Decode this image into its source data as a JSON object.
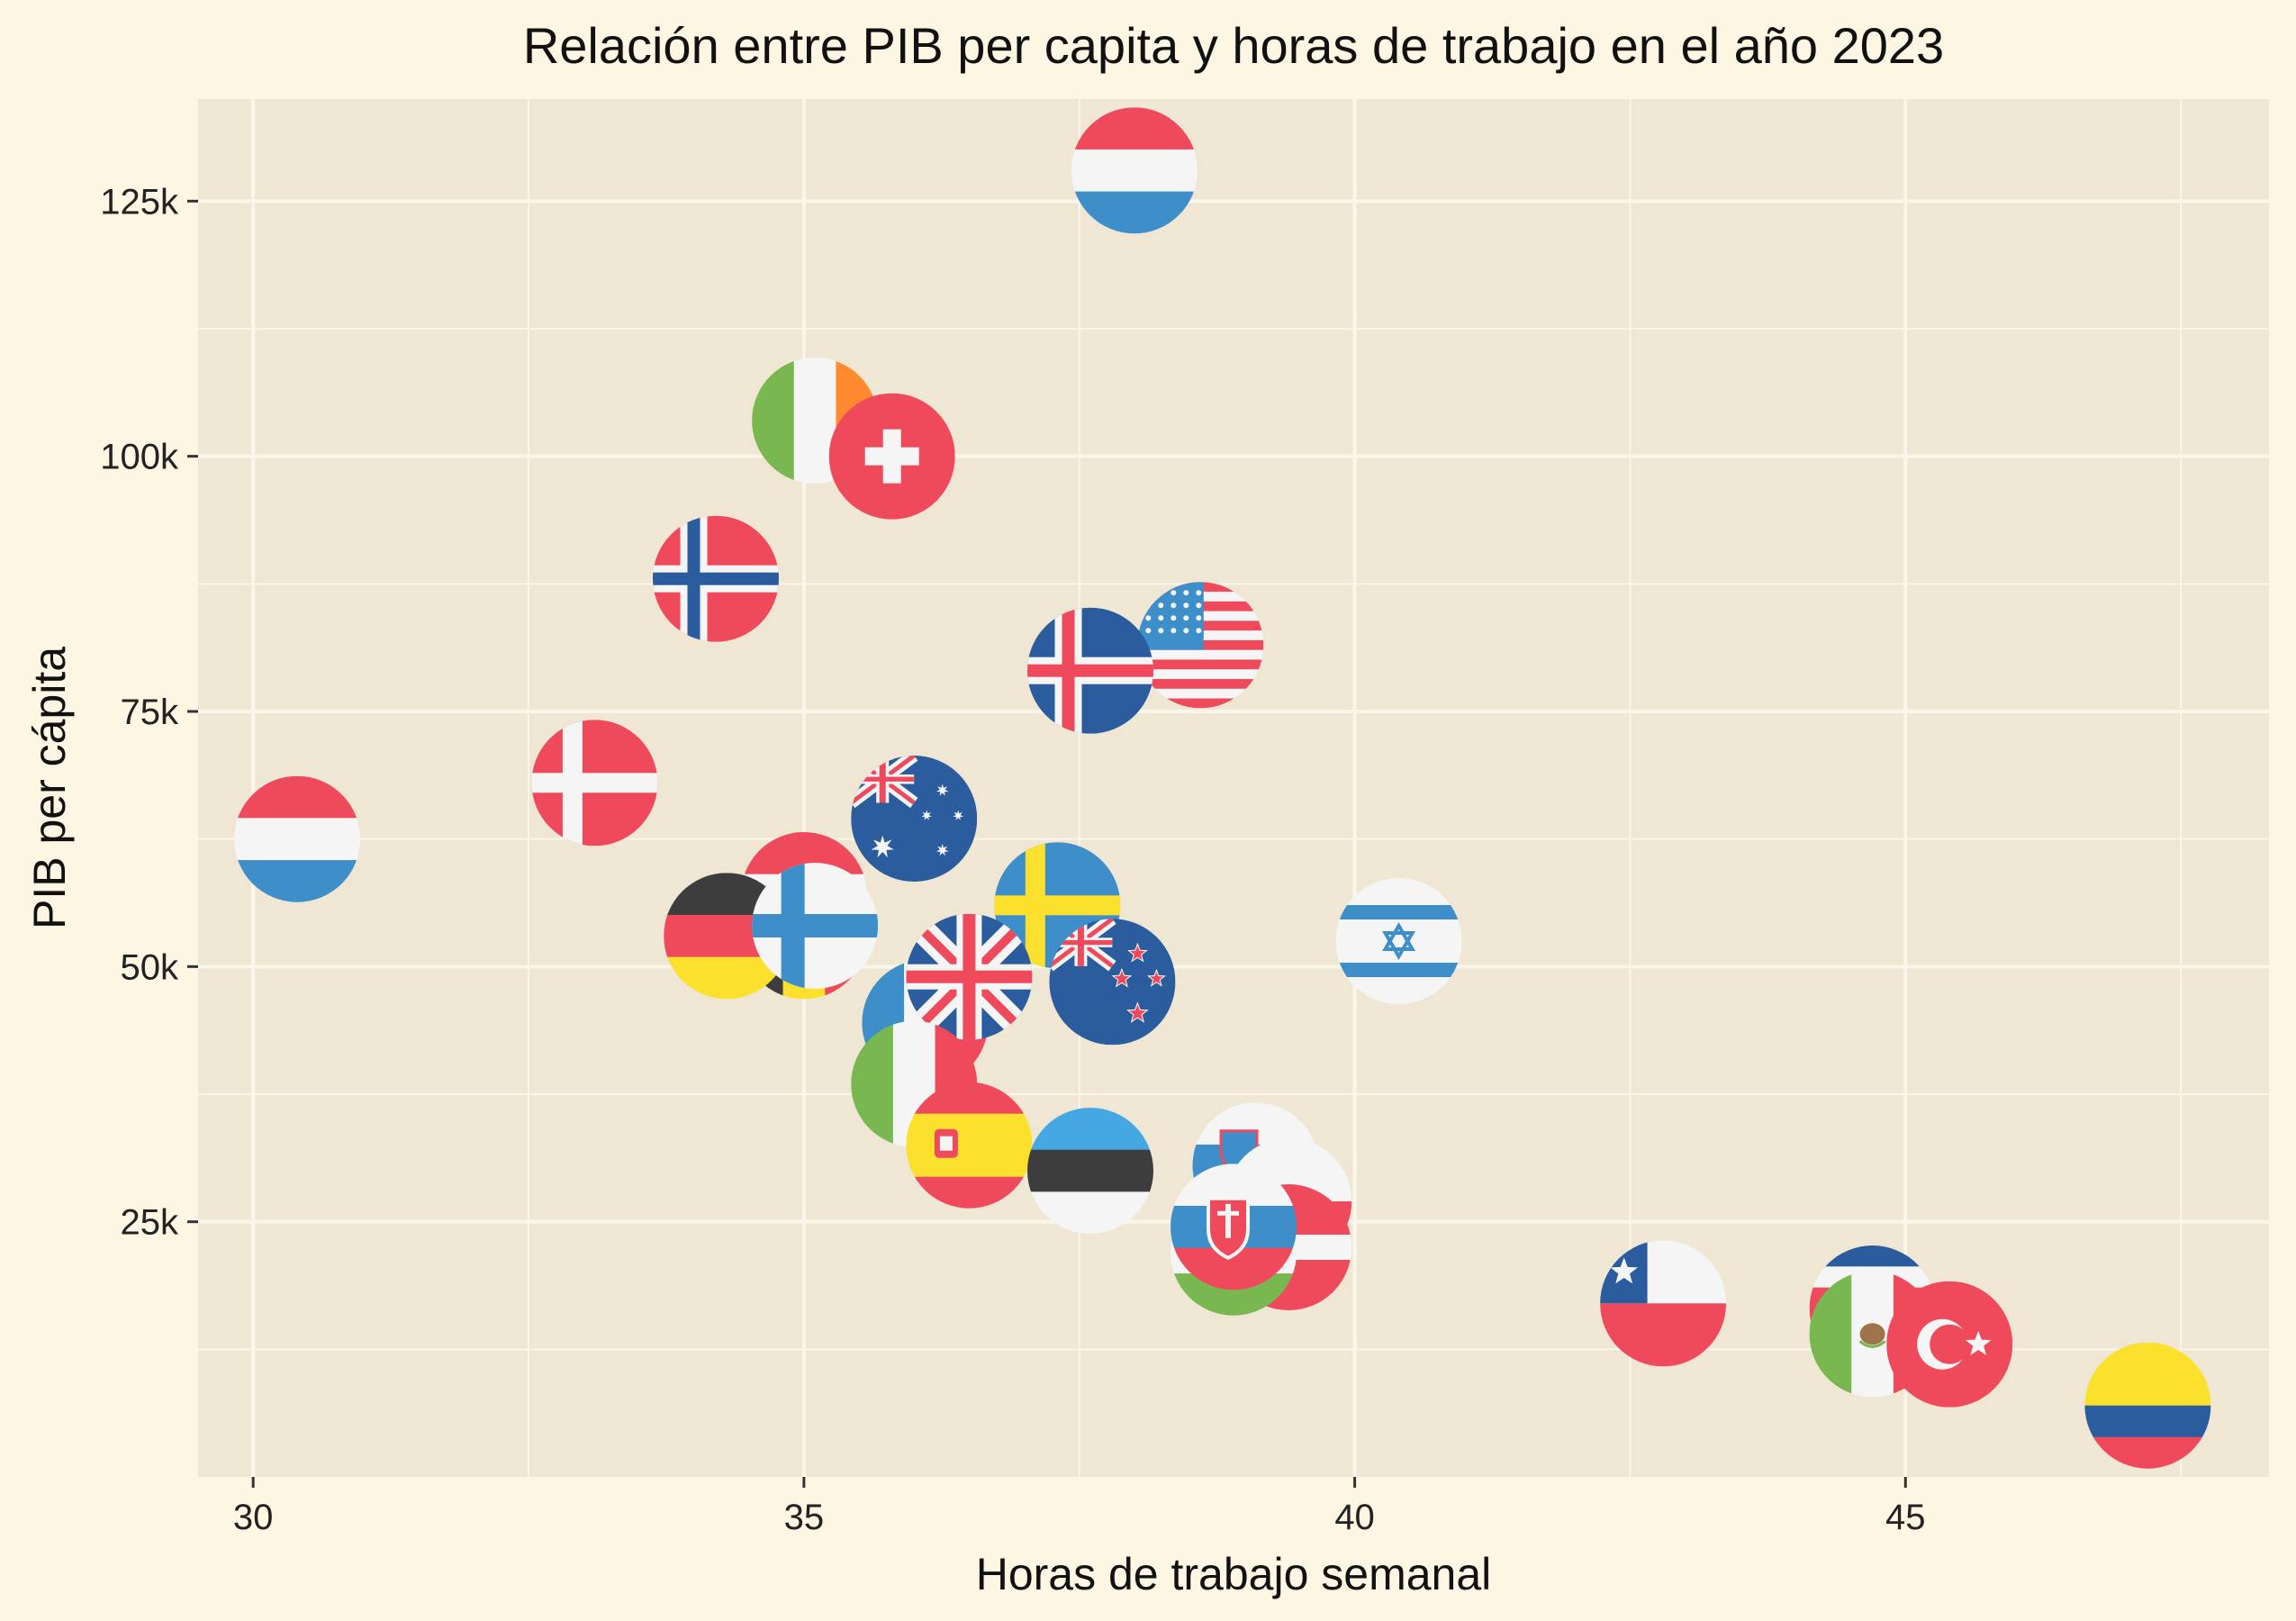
{
  "chart_data": {
    "type": "scatter",
    "title": "Relación entre PIB per capita y horas de trabajo en el año 2023",
    "xlabel": "Horas de trabajo semanal",
    "ylabel": "PIB per cápita",
    "xlim": [
      29.5,
      48.3
    ],
    "ylim": [
      0,
      135000
    ],
    "x_ticks": [
      30,
      35,
      40,
      45
    ],
    "x_tick_labels": [
      "30",
      "35",
      "40",
      "45"
    ],
    "y_ticks": [
      25000,
      50000,
      75000,
      100000,
      125000
    ],
    "y_tick_labels": [
      "25k",
      "50k",
      "75k",
      "100k",
      "125k"
    ],
    "grid": true,
    "colors": {
      "page_background": "#fdf6e3",
      "panel_background": "#efe7d4",
      "grid": "#fbf6ea",
      "red": "#ee4a5c",
      "blue": "#3d8ec9",
      "dark_blue": "#2a5c9e",
      "white": "#f5f5f5",
      "black": "#3d3d3d",
      "yellow": "#fbe12e",
      "green": "#79b851",
      "orange": "#ff8a2f",
      "light_blue": "#45a8e3"
    },
    "points": [
      {
        "country": "Luxembourg",
        "flag": "luxembourg-flag",
        "x": 38.0,
        "y": 128000
      },
      {
        "country": "Ireland",
        "flag": "ireland-flag",
        "x": 35.1,
        "y": 103500
      },
      {
        "country": "Switzerland",
        "flag": "switzerland-flag",
        "x": 35.8,
        "y": 100000
      },
      {
        "country": "Norway",
        "flag": "norway-flag",
        "x": 34.2,
        "y": 88000
      },
      {
        "country": "United States",
        "flag": "usa-flag",
        "x": 38.6,
        "y": 81500
      },
      {
        "country": "Iceland",
        "flag": "iceland-flag",
        "x": 37.6,
        "y": 79000
      },
      {
        "country": "Denmark",
        "flag": "denmark-flag",
        "x": 33.1,
        "y": 68000
      },
      {
        "country": "Netherlands",
        "flag": "netherlands-flag",
        "x": 30.4,
        "y": 62500
      },
      {
        "country": "Australia",
        "flag": "australia-flag",
        "x": 36.0,
        "y": 64500
      },
      {
        "country": "Austria",
        "flag": "austria-flag",
        "x": 35.0,
        "y": 57000
      },
      {
        "country": "Belgium",
        "flag": "belgium-flag",
        "x": 35.0,
        "y": 53000
      },
      {
        "country": "Germany",
        "flag": "germany-flag",
        "x": 34.3,
        "y": 53000
      },
      {
        "country": "Finland",
        "flag": "finland-flag",
        "x": 35.1,
        "y": 54000
      },
      {
        "country": "Sweden",
        "flag": "sweden-flag",
        "x": 37.3,
        "y": 56000
      },
      {
        "country": "Israel",
        "flag": "israel-flag",
        "x": 40.4,
        "y": 52500
      },
      {
        "country": "New Zealand",
        "flag": "new-zealand-flag",
        "x": 37.8,
        "y": 48500
      },
      {
        "country": "France",
        "flag": "france-flag",
        "x": 36.1,
        "y": 44500
      },
      {
        "country": "United Kingdom",
        "flag": "uk-flag",
        "x": 36.5,
        "y": 49000
      },
      {
        "country": "Italy",
        "flag": "italy-flag",
        "x": 36.0,
        "y": 38500
      },
      {
        "country": "Spain",
        "flag": "spain-flag",
        "x": 36.5,
        "y": 32500
      },
      {
        "country": "Estonia",
        "flag": "estonia-flag",
        "x": 37.6,
        "y": 30000
      },
      {
        "country": "Slovenia",
        "flag": "slovenia-flag",
        "x": 39.1,
        "y": 30500
      },
      {
        "country": "Poland",
        "flag": "poland-flag",
        "x": 39.4,
        "y": 27000
      },
      {
        "country": "Latvia",
        "flag": "latvia-flag",
        "x": 39.4,
        "y": 22500
      },
      {
        "country": "Hungary",
        "flag": "hungary-flag",
        "x": 38.9,
        "y": 22000
      },
      {
        "country": "Slovakia",
        "flag": "slovakia-flag",
        "x": 38.9,
        "y": 24500
      },
      {
        "country": "Chile",
        "flag": "chile-flag",
        "x": 42.8,
        "y": 17000
      },
      {
        "country": "Costa Rica",
        "flag": "costa-rica-flag",
        "x": 44.7,
        "y": 16500
      },
      {
        "country": "Mexico",
        "flag": "mexico-flag",
        "x": 44.7,
        "y": 14000
      },
      {
        "country": "Turkey",
        "flag": "turkey-flag",
        "x": 45.4,
        "y": 13000
      },
      {
        "country": "Colombia",
        "flag": "colombia-flag",
        "x": 47.2,
        "y": 7000
      }
    ]
  }
}
